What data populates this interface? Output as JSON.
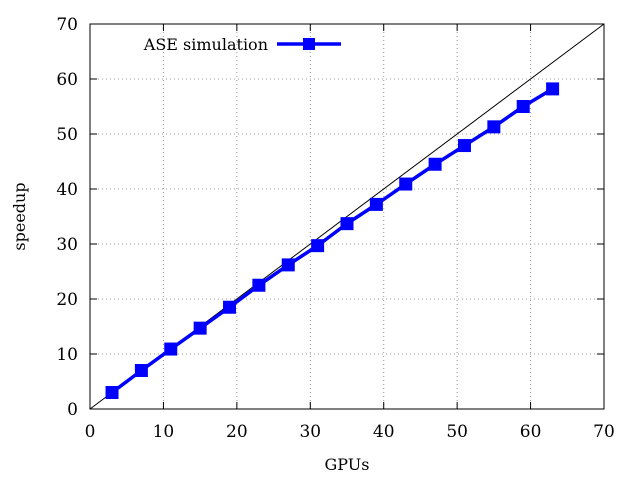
{
  "chart_data": {
    "type": "line",
    "xlabel": "GPUs",
    "ylabel": "speedup",
    "xlim": [
      0,
      70
    ],
    "ylim": [
      0,
      70
    ],
    "xticks": [
      0,
      10,
      20,
      30,
      40,
      50,
      60,
      70
    ],
    "yticks": [
      0,
      10,
      20,
      30,
      40,
      50,
      60,
      70
    ],
    "grid": true,
    "grid_style": "dotted",
    "legend_position": "top-left",
    "reference_line": {
      "from": [
        0,
        0
      ],
      "to": [
        70,
        70
      ],
      "color": "#000000"
    },
    "series": [
      {
        "name": "ASE simulation",
        "color": "#0000ff",
        "marker": "square",
        "x": [
          3,
          7,
          11,
          15,
          19,
          23,
          27,
          31,
          35,
          39,
          43,
          47,
          51,
          55,
          59,
          63
        ],
        "y": [
          3.0,
          7.0,
          10.9,
          14.7,
          18.5,
          22.5,
          26.2,
          29.7,
          33.7,
          37.2,
          40.9,
          44.5,
          47.9,
          51.3,
          55.0,
          58.2
        ]
      }
    ]
  }
}
